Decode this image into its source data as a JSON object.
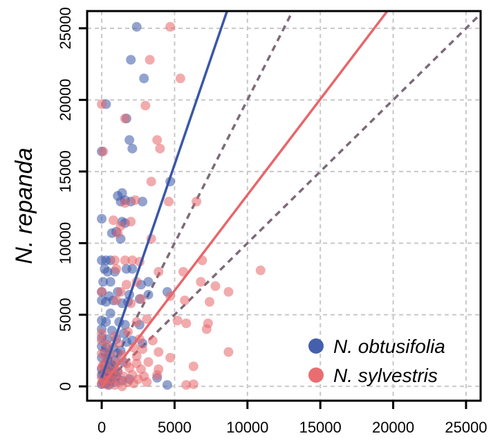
{
  "chart_data": {
    "type": "scatter",
    "title": "",
    "xlabel": "",
    "ylabel": "N. repanda",
    "xlim": [
      -1000,
      26000
    ],
    "ylim": [
      -1000,
      26200
    ],
    "xticks": [
      0,
      5000,
      10000,
      15000,
      20000,
      25000
    ],
    "yticks": [
      0,
      5000,
      10000,
      15000,
      20000,
      25000
    ],
    "xtick_labels": [
      "0",
      "5000",
      "10000",
      "15000",
      "20000",
      "25000"
    ],
    "ytick_labels": [
      "0",
      "5000",
      "10000",
      "15000",
      "20000",
      "25000"
    ],
    "grid": true,
    "legend": "bottom-right",
    "reference_lines": [
      {
        "style": "dashed",
        "color": "#7d6a78",
        "x": [
          0,
          13100
        ],
        "y": [
          0,
          26200
        ]
      },
      {
        "style": "dashed",
        "color": "#7d6a78",
        "x": [
          0,
          26000
        ],
        "y": [
          0,
          26000
        ]
      }
    ],
    "series": [
      {
        "name": "N. obtusifolia",
        "color": "#3a57a8",
        "fit": {
          "x": [
            0,
            8600
          ],
          "y": [
            600,
            26200
          ]
        },
        "points": [
          [
            2400,
            25100
          ],
          [
            2000,
            22800
          ],
          [
            2900,
            21500
          ],
          [
            300,
            19700
          ],
          [
            1700,
            18700
          ],
          [
            1900,
            17200
          ],
          [
            2100,
            16600
          ],
          [
            0,
            16400
          ],
          [
            4700,
            14300
          ],
          [
            1100,
            13300
          ],
          [
            1400,
            13500
          ],
          [
            1600,
            13000
          ],
          [
            2800,
            12900
          ],
          [
            1300,
            12900
          ],
          [
            2000,
            12900
          ],
          [
            0,
            11700
          ],
          [
            1400,
            11500
          ],
          [
            1600,
            11400
          ],
          [
            1000,
            10800
          ],
          [
            700,
            10700
          ],
          [
            1300,
            10300
          ],
          [
            0,
            8800
          ],
          [
            300,
            8800
          ],
          [
            600,
            8800
          ],
          [
            200,
            8200
          ],
          [
            400,
            8000
          ],
          [
            900,
            8000
          ],
          [
            1700,
            8200
          ],
          [
            2100,
            8200
          ],
          [
            100,
            7300
          ],
          [
            600,
            7300
          ],
          [
            2700,
            7100
          ],
          [
            3200,
            7300
          ],
          [
            0,
            6600
          ],
          [
            500,
            6300
          ],
          [
            1100,
            6600
          ],
          [
            1900,
            6400
          ],
          [
            2600,
            6100
          ],
          [
            3200,
            6400
          ],
          [
            4500,
            6600
          ],
          [
            0,
            6000
          ],
          [
            300,
            5900
          ],
          [
            800,
            6000
          ],
          [
            1400,
            5800
          ],
          [
            1800,
            5900
          ],
          [
            600,
            5100
          ],
          [
            0,
            4600
          ],
          [
            300,
            4500
          ],
          [
            1200,
            4500
          ],
          [
            1600,
            4300
          ],
          [
            2600,
            4300
          ],
          [
            0,
            4000
          ],
          [
            700,
            3900
          ],
          [
            1500,
            3700
          ],
          [
            0,
            3400
          ],
          [
            400,
            3300
          ],
          [
            1000,
            3300
          ],
          [
            1700,
            3100
          ],
          [
            2100,
            3200
          ],
          [
            2800,
            3000
          ],
          [
            0,
            2800
          ],
          [
            300,
            2700
          ],
          [
            800,
            2700
          ],
          [
            1300,
            2500
          ],
          [
            500,
            2200
          ],
          [
            1100,
            2300
          ],
          [
            0,
            2000
          ],
          [
            400,
            1900
          ],
          [
            900,
            1800
          ],
          [
            200,
            1500
          ],
          [
            700,
            1500
          ],
          [
            0,
            1200
          ],
          [
            300,
            1100
          ],
          [
            500,
            1000
          ],
          [
            800,
            900
          ],
          [
            1100,
            1000
          ],
          [
            0,
            800
          ],
          [
            200,
            600
          ],
          [
            400,
            500
          ],
          [
            600,
            400
          ],
          [
            100,
            300
          ],
          [
            300,
            200
          ],
          [
            0,
            150
          ],
          [
            500,
            100
          ],
          [
            900,
            300
          ],
          [
            1400,
            400
          ],
          [
            1900,
            500
          ],
          [
            3800,
            600
          ],
          [
            4500,
            100
          ],
          [
            100,
            900
          ],
          [
            200,
            2400
          ],
          [
            600,
            1300
          ],
          [
            1000,
            700
          ],
          [
            1500,
            1700
          ]
        ]
      },
      {
        "name": "N. sylvestris",
        "color": "#e8666a",
        "fit": {
          "x": [
            0,
            19600
          ],
          "y": [
            0,
            26200
          ]
        },
        "points": [
          [
            4700,
            25100
          ],
          [
            3300,
            22800
          ],
          [
            5400,
            21500
          ],
          [
            0,
            19700
          ],
          [
            3000,
            19600
          ],
          [
            1600,
            18700
          ],
          [
            3800,
            17200
          ],
          [
            4000,
            16600
          ],
          [
            100,
            16400
          ],
          [
            3400,
            14300
          ],
          [
            6500,
            12900
          ],
          [
            4600,
            12900
          ],
          [
            2300,
            13000
          ],
          [
            1600,
            12800
          ],
          [
            800,
            11600
          ],
          [
            2000,
            11500
          ],
          [
            1300,
            11200
          ],
          [
            1100,
            10700
          ],
          [
            3400,
            10300
          ],
          [
            900,
            8800
          ],
          [
            1600,
            8800
          ],
          [
            2100,
            8800
          ],
          [
            2600,
            8700
          ],
          [
            6900,
            8800
          ],
          [
            1000,
            8200
          ],
          [
            3900,
            8000
          ],
          [
            5600,
            8000
          ],
          [
            10900,
            8100
          ],
          [
            1700,
            7100
          ],
          [
            2400,
            7300
          ],
          [
            6800,
            7300
          ],
          [
            7800,
            7000
          ],
          [
            0,
            6600
          ],
          [
            1300,
            6600
          ],
          [
            2700,
            6100
          ],
          [
            8700,
            6600
          ],
          [
            4700,
            6300
          ],
          [
            1000,
            6000
          ],
          [
            2000,
            5800
          ],
          [
            5700,
            6000
          ],
          [
            7400,
            5900
          ],
          [
            5200,
            4600
          ],
          [
            7300,
            4400
          ],
          [
            5800,
            4400
          ],
          [
            7200,
            4000
          ],
          [
            2400,
            4500
          ],
          [
            3100,
            4700
          ],
          [
            0,
            3700
          ],
          [
            900,
            3500
          ],
          [
            1800,
            3800
          ],
          [
            2600,
            3300
          ],
          [
            3500,
            3200
          ],
          [
            0,
            3200
          ],
          [
            400,
            2900
          ],
          [
            1100,
            3000
          ],
          [
            2200,
            2700
          ],
          [
            2800,
            2600
          ],
          [
            3900,
            2400
          ],
          [
            8700,
            2400
          ],
          [
            0,
            2300
          ],
          [
            600,
            2300
          ],
          [
            1400,
            2200
          ],
          [
            2400,
            2100
          ],
          [
            4700,
            2000
          ],
          [
            300,
            1800
          ],
          [
            1000,
            1700
          ],
          [
            1700,
            1600
          ],
          [
            2400,
            1600
          ],
          [
            3200,
            1700
          ],
          [
            6300,
            1400
          ],
          [
            0,
            1300
          ],
          [
            500,
            1200
          ],
          [
            1100,
            1100
          ],
          [
            1900,
            1300
          ],
          [
            2700,
            1200
          ],
          [
            3900,
            1200
          ],
          [
            300,
            900
          ],
          [
            800,
            800
          ],
          [
            1500,
            700
          ],
          [
            2100,
            800
          ],
          [
            2900,
            700
          ],
          [
            3800,
            800
          ],
          [
            0,
            600
          ],
          [
            600,
            500
          ],
          [
            1200,
            400
          ],
          [
            1800,
            300
          ],
          [
            2500,
            500
          ],
          [
            3100,
            300
          ],
          [
            0,
            200
          ],
          [
            400,
            100
          ],
          [
            900,
            100
          ],
          [
            1400,
            0
          ],
          [
            2200,
            200
          ],
          [
            5800,
            100
          ],
          [
            6300,
            150
          ],
          [
            200,
            400
          ],
          [
            100,
            1500
          ]
        ]
      }
    ]
  }
}
